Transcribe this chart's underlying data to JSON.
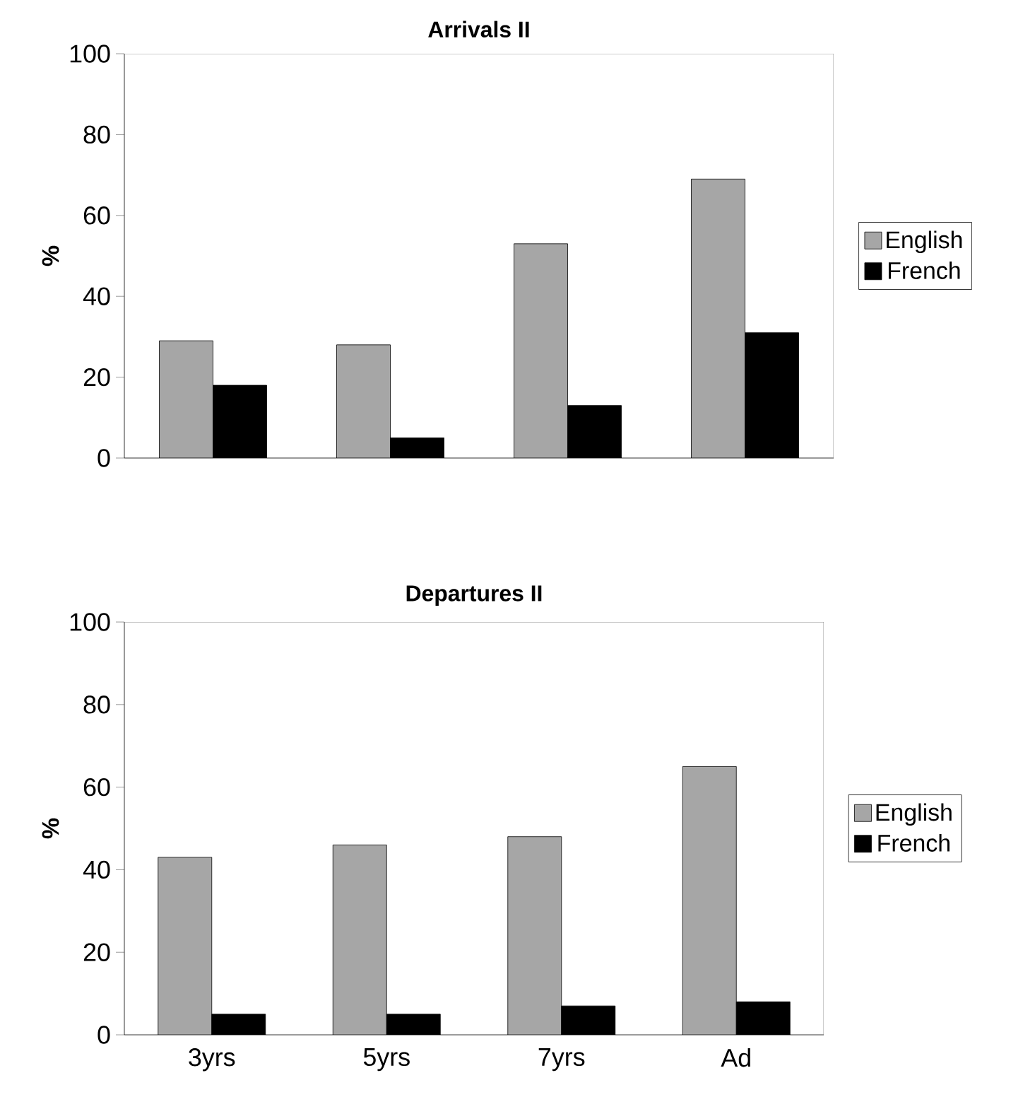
{
  "chart_data": [
    {
      "type": "bar",
      "title": "Arrivals II",
      "ylabel": "%",
      "categories": [
        null,
        null,
        null,
        null
      ],
      "series": [
        {
          "name": "English",
          "color": "#a6a6a6",
          "values": [
            29,
            28,
            53,
            69
          ]
        },
        {
          "name": "French",
          "color": "#000000",
          "values": [
            18,
            5,
            13,
            31
          ]
        }
      ],
      "ylim": [
        0,
        100
      ],
      "yticks": [
        0,
        20,
        40,
        60,
        80,
        100
      ],
      "legend": "right"
    },
    {
      "type": "bar",
      "title": "Departures II",
      "ylabel": "%",
      "categories": [
        "3yrs",
        "5yrs",
        "7yrs",
        "Ad"
      ],
      "series": [
        {
          "name": "English",
          "color": "#a6a6a6",
          "values": [
            43,
            46,
            48,
            65
          ]
        },
        {
          "name": "French",
          "color": "#000000",
          "values": [
            5,
            5,
            7,
            8
          ]
        }
      ],
      "ylim": [
        0,
        100
      ],
      "yticks": [
        0,
        20,
        40,
        60,
        80,
        100
      ],
      "legend": "right"
    }
  ]
}
